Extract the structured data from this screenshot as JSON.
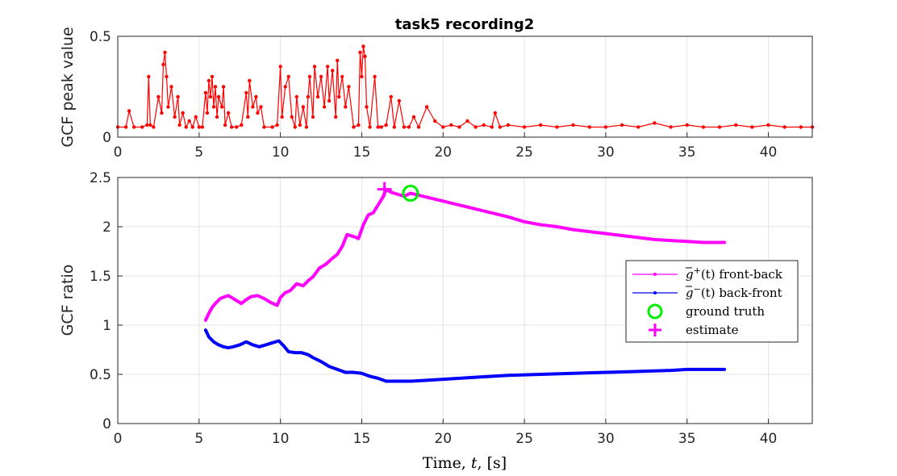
{
  "chart_data": [
    {
      "type": "line",
      "title": "task5  recording2",
      "ylabel": "GCF peak value",
      "xlabel": "",
      "xlim": [
        0,
        42.7
      ],
      "ylim": [
        0,
        0.5
      ],
      "xticks": [
        0,
        5,
        10,
        15,
        20,
        25,
        30,
        35,
        40
      ],
      "yticks": [
        0,
        0.5
      ],
      "grid": true,
      "series": [
        {
          "color": "#ff0000",
          "marker": "dot",
          "x": [
            0,
            0.5,
            0.7,
            1,
            1.5,
            1.8,
            1.9,
            2,
            2.2,
            2.5,
            2.7,
            2.8,
            2.9,
            3,
            3.1,
            3.3,
            3.5,
            3.7,
            3.8,
            4,
            4.2,
            4.4,
            4.6,
            4.8,
            5,
            5.2,
            5.4,
            5.5,
            5.6,
            5.7,
            5.8,
            5.9,
            6,
            6.1,
            6.2,
            6.4,
            6.5,
            6.6,
            6.8,
            7,
            7.3,
            7.6,
            7.9,
            8,
            8.1,
            8.3,
            8.5,
            8.6,
            8.8,
            9,
            9.5,
            9.8,
            10,
            10.1,
            10.3,
            10.5,
            10.7,
            10.9,
            11,
            11.2,
            11.4,
            11.6,
            11.7,
            11.8,
            12,
            12.1,
            12.3,
            12.5,
            12.7,
            12.9,
            13,
            13.2,
            13.4,
            13.5,
            13.6,
            13.8,
            14,
            14.2,
            14.5,
            14.8,
            14.9,
            15,
            15.1,
            15.2,
            15.3,
            15.5,
            15.8,
            16,
            16.2,
            16.5,
            16.8,
            17,
            17.3,
            17.6,
            17.9,
            18.2,
            18.5,
            19,
            19.5,
            20,
            20.5,
            21,
            21.5,
            22,
            22.5,
            23,
            23.2,
            23.5,
            24,
            25,
            26,
            27,
            28,
            29,
            30,
            31,
            32,
            33,
            34,
            35,
            36,
            37,
            38,
            39,
            40,
            41,
            42,
            42.7
          ],
          "values": [
            0.05,
            0.05,
            0.13,
            0.05,
            0.05,
            0.06,
            0.3,
            0.06,
            0.05,
            0.2,
            0.12,
            0.36,
            0.42,
            0.3,
            0.15,
            0.25,
            0.1,
            0.2,
            0.06,
            0.12,
            0.05,
            0.08,
            0.05,
            0.1,
            0.05,
            0.05,
            0.22,
            0.12,
            0.28,
            0.2,
            0.3,
            0.15,
            0.25,
            0.1,
            0.2,
            0.15,
            0.25,
            0.06,
            0.12,
            0.05,
            0.05,
            0.06,
            0.22,
            0.1,
            0.28,
            0.15,
            0.2,
            0.12,
            0.15,
            0.05,
            0.05,
            0.06,
            0.35,
            0.1,
            0.25,
            0.3,
            0.1,
            0.05,
            0.2,
            0.06,
            0.15,
            0.05,
            0.2,
            0.3,
            0.1,
            0.35,
            0.2,
            0.3,
            0.15,
            0.35,
            0.18,
            0.33,
            0.1,
            0.38,
            0.2,
            0.3,
            0.15,
            0.25,
            0.05,
            0.06,
            0.42,
            0.3,
            0.45,
            0.4,
            0.15,
            0.05,
            0.3,
            0.05,
            0.05,
            0.06,
            0.2,
            0.05,
            0.18,
            0.05,
            0.05,
            0.1,
            0.05,
            0.15,
            0.08,
            0.05,
            0.06,
            0.05,
            0.08,
            0.05,
            0.06,
            0.05,
            0.12,
            0.05,
            0.06,
            0.05,
            0.06,
            0.05,
            0.06,
            0.05,
            0.05,
            0.06,
            0.05,
            0.07,
            0.05,
            0.06,
            0.05,
            0.05,
            0.06,
            0.05,
            0.06,
            0.05,
            0.05,
            0.05
          ]
        }
      ]
    },
    {
      "type": "line",
      "title": "",
      "ylabel": "GCF ratio",
      "xlabel": "Time, t, [s]",
      "xlim": [
        0,
        42.7
      ],
      "ylim": [
        0,
        2.5
      ],
      "xticks": [
        0,
        5,
        10,
        15,
        20,
        25,
        30,
        35,
        40
      ],
      "yticks": [
        0,
        0.5,
        1,
        1.5,
        2,
        2.5
      ],
      "grid": true,
      "legend": {
        "placement": "right",
        "entries": [
          {
            "base": "g",
            "sup": "+",
            "arg": "(t)",
            "text": "front-back",
            "color": "#ff00ff",
            "kind": "line"
          },
          {
            "base": "g",
            "sup": "−",
            "arg": "(t)",
            "text": "back-front",
            "color": "#0000ff",
            "kind": "line"
          },
          {
            "text": "ground truth",
            "color": "#00ee00",
            "kind": "circle"
          },
          {
            "text": "estimate",
            "color": "#ff00ff",
            "kind": "plus"
          }
        ]
      },
      "series": [
        {
          "name": "front-back",
          "color": "#ff00ff",
          "x": [
            5.4,
            5.6,
            5.8,
            6,
            6.3,
            6.6,
            6.8,
            7,
            7.3,
            7.6,
            7.9,
            8.2,
            8.6,
            9,
            9.4,
            9.8,
            10,
            10.3,
            10.6,
            11,
            11.4,
            11.7,
            12,
            12.4,
            12.8,
            13.2,
            13.5,
            13.8,
            14.1,
            14.5,
            14.8,
            15.1,
            15.4,
            15.7,
            16,
            16.3,
            16.5,
            16.8,
            17.2,
            17.6,
            18,
            18.5,
            19,
            19.5,
            20,
            21,
            22,
            23,
            24,
            25,
            26,
            27,
            28,
            29,
            30,
            31,
            32,
            33,
            34,
            35,
            36,
            37.3
          ],
          "values": [
            1.05,
            1.12,
            1.18,
            1.22,
            1.27,
            1.29,
            1.3,
            1.28,
            1.25,
            1.22,
            1.26,
            1.29,
            1.3,
            1.27,
            1.23,
            1.2,
            1.28,
            1.33,
            1.35,
            1.42,
            1.4,
            1.45,
            1.49,
            1.58,
            1.62,
            1.68,
            1.72,
            1.8,
            1.92,
            1.9,
            1.88,
            2.02,
            2.12,
            2.14,
            2.22,
            2.3,
            2.38,
            2.35,
            2.33,
            2.31,
            2.34,
            2.32,
            2.3,
            2.28,
            2.26,
            2.22,
            2.18,
            2.14,
            2.1,
            2.05,
            2.02,
            2,
            1.97,
            1.95,
            1.93,
            1.91,
            1.89,
            1.87,
            1.86,
            1.85,
            1.84,
            1.84
          ]
        },
        {
          "name": "back-front",
          "color": "#0000ff",
          "x": [
            5.4,
            5.6,
            5.9,
            6.2,
            6.5,
            6.8,
            7.1,
            7.5,
            7.9,
            8.3,
            8.7,
            9.1,
            9.5,
            9.9,
            10.2,
            10.5,
            10.9,
            11.3,
            11.7,
            12,
            12.5,
            13,
            13.5,
            14,
            14.5,
            15,
            15.5,
            16,
            16.5,
            17,
            18,
            19,
            20,
            22,
            24,
            26,
            28,
            30,
            32,
            34,
            35,
            36,
            37.3
          ],
          "values": [
            0.95,
            0.88,
            0.83,
            0.8,
            0.78,
            0.77,
            0.78,
            0.8,
            0.83,
            0.8,
            0.78,
            0.8,
            0.82,
            0.84,
            0.79,
            0.73,
            0.72,
            0.72,
            0.7,
            0.67,
            0.63,
            0.58,
            0.55,
            0.52,
            0.52,
            0.51,
            0.48,
            0.46,
            0.43,
            0.43,
            0.43,
            0.44,
            0.45,
            0.47,
            0.49,
            0.5,
            0.51,
            0.52,
            0.53,
            0.54,
            0.55,
            0.55,
            0.55
          ]
        }
      ],
      "markers": [
        {
          "label": "ground truth",
          "x": 18,
          "y": 2.34,
          "color": "#00ee00",
          "shape": "circle"
        },
        {
          "label": "estimate",
          "x": 16.4,
          "y": 2.38,
          "color": "#ff00ff",
          "shape": "plus"
        }
      ]
    }
  ]
}
